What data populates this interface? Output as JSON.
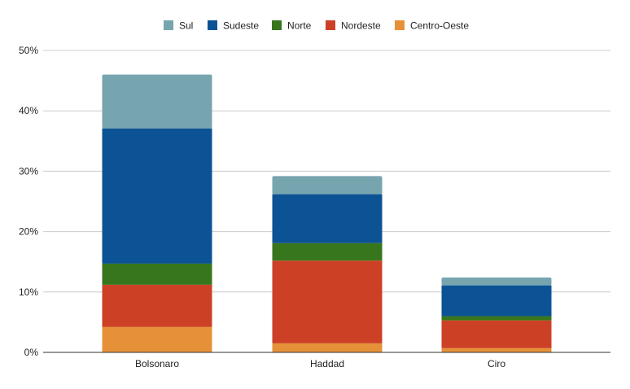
{
  "chart_data": {
    "type": "bar",
    "stacked": true,
    "categories": [
      "Bolsonaro",
      "Haddad",
      "Ciro"
    ],
    "series": [
      {
        "name": "Centro-Oeste",
        "color": "#e69138",
        "values": [
          4.2,
          1.5,
          0.7
        ]
      },
      {
        "name": "Nordeste",
        "color": "#cc4125",
        "values": [
          7.0,
          13.7,
          4.6
        ]
      },
      {
        "name": "Norte",
        "color": "#38761d",
        "values": [
          3.5,
          2.9,
          0.7
        ]
      },
      {
        "name": "Sudeste",
        "color": "#0b5394",
        "values": [
          22.4,
          8.1,
          5.1
        ]
      },
      {
        "name": "Sul",
        "color": "#76a5af",
        "values": [
          8.9,
          3.0,
          1.3
        ]
      }
    ],
    "legend_order": [
      "Sul",
      "Sudeste",
      "Norte",
      "Nordeste",
      "Centro-Oeste"
    ],
    "legend_position": "top",
    "ylim": [
      0,
      50
    ],
    "yticks": [
      0,
      10,
      20,
      30,
      40,
      50
    ],
    "ytick_labels": [
      "0%",
      "10%",
      "20%",
      "30%",
      "40%",
      "50%"
    ],
    "grid": true,
    "title": "",
    "xlabel": "",
    "ylabel": ""
  }
}
